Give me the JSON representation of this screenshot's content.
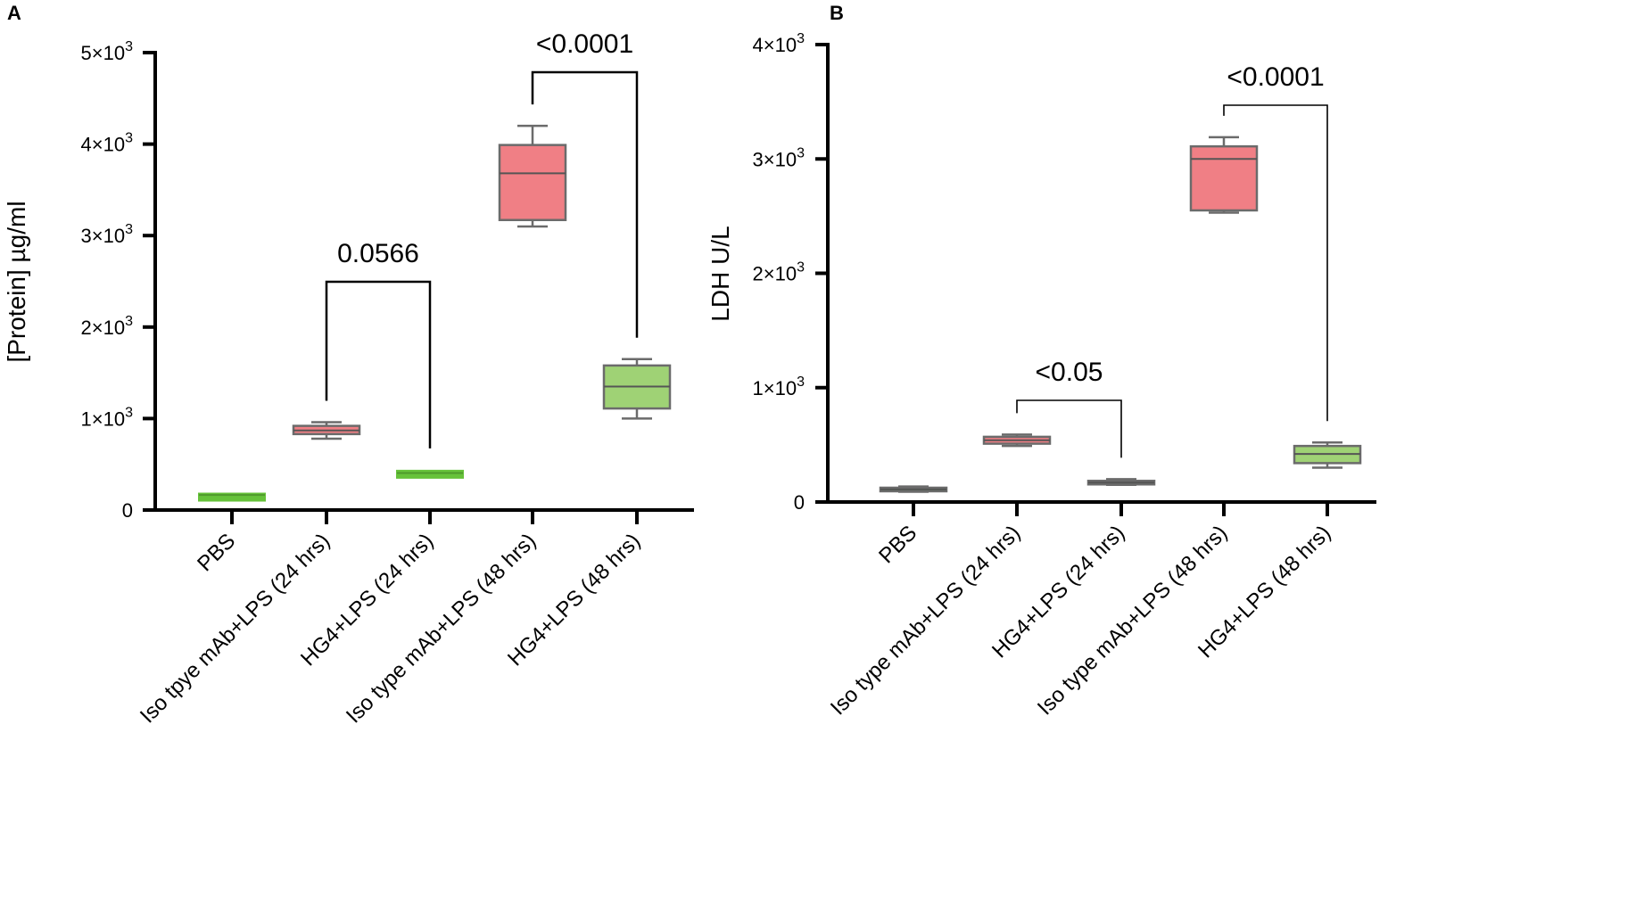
{
  "chart_data": [
    {
      "panel_label": "A",
      "type": "box",
      "ylabel": "[Protein] µg/ml",
      "ylim": [
        0,
        5000
      ],
      "yticks": [
        {
          "value": 0,
          "label": "0"
        },
        {
          "value": 1000,
          "label": "1×10",
          "exp": "3"
        },
        {
          "value": 2000,
          "label": "2×10",
          "exp": "3"
        },
        {
          "value": 3000,
          "label": "3×10",
          "exp": "3"
        },
        {
          "value": 4000,
          "label": "4×10",
          "exp": "3"
        },
        {
          "value": 5000,
          "label": "5×10",
          "exp": "3"
        }
      ],
      "categories": [
        "PBS",
        "Iso tpye mAb+LPS (24 hrs)",
        "HG4+LPS (24 hrs)",
        "Iso type mAb+LPS (48 hrs)",
        "HG4+LPS (48 hrs)"
      ],
      "boxes": [
        {
          "min": 150,
          "q1": 150,
          "median": 165,
          "q3": 180,
          "max": 190,
          "color": "#66c23a",
          "style": "thin"
        },
        {
          "min": 780,
          "q1": 830,
          "median": 870,
          "q3": 920,
          "max": 960,
          "color": "#f07f85",
          "style": "box"
        },
        {
          "min": 380,
          "q1": 380,
          "median": 405,
          "q3": 430,
          "max": 440,
          "color": "#66c23a",
          "style": "thin"
        },
        {
          "min": 3100,
          "q1": 3170,
          "median": 3680,
          "q3": 3990,
          "max": 4200,
          "color": "#f07f85",
          "style": "box"
        },
        {
          "min": 1000,
          "q1": 1110,
          "median": 1350,
          "q3": 1580,
          "max": 1650,
          "color": "#9fd275",
          "style": "box"
        }
      ],
      "comparisons": [
        {
          "from": 1,
          "to": 2,
          "label": "0.0566"
        },
        {
          "from": 3,
          "to": 4,
          "label": "<0.0001"
        }
      ]
    },
    {
      "panel_label": "B",
      "type": "box",
      "ylabel": "LDH U/L",
      "ylim": [
        0,
        4000
      ],
      "yticks": [
        {
          "value": 0,
          "label": "0"
        },
        {
          "value": 1000,
          "label": "1×10",
          "exp": "3"
        },
        {
          "value": 2000,
          "label": "2×10",
          "exp": "3"
        },
        {
          "value": 3000,
          "label": "3×10",
          "exp": "3"
        },
        {
          "value": 4000,
          "label": "4×10",
          "exp": "3"
        }
      ],
      "categories": [
        "PBS",
        "Iso type mAb+LPS (24 hrs)",
        "HG4+LPS (24 hrs)",
        "Iso type mAb+LPS (48 hrs)",
        "HG4+LPS (48 hrs)"
      ],
      "boxes": [
        {
          "min": 90,
          "q1": 95,
          "median": 110,
          "q3": 125,
          "max": 135,
          "color": "#3fa53f",
          "style": "box"
        },
        {
          "min": 490,
          "q1": 510,
          "median": 540,
          "q3": 570,
          "max": 590,
          "color": "#f07f85",
          "style": "box"
        },
        {
          "min": 150,
          "q1": 155,
          "median": 170,
          "q3": 185,
          "max": 200,
          "color": "#3fa53f",
          "style": "box"
        },
        {
          "min": 2530,
          "q1": 2550,
          "median": 3000,
          "q3": 3110,
          "max": 3190,
          "color": "#f07f85",
          "style": "box"
        },
        {
          "min": 300,
          "q1": 340,
          "median": 420,
          "q3": 490,
          "max": 520,
          "color": "#9fd275",
          "style": "box"
        }
      ],
      "comparisons": [
        {
          "from": 1,
          "to": 2,
          "label": "<0.05"
        },
        {
          "from": 3,
          "to": 4,
          "label": "<0.0001"
        }
      ]
    }
  ]
}
